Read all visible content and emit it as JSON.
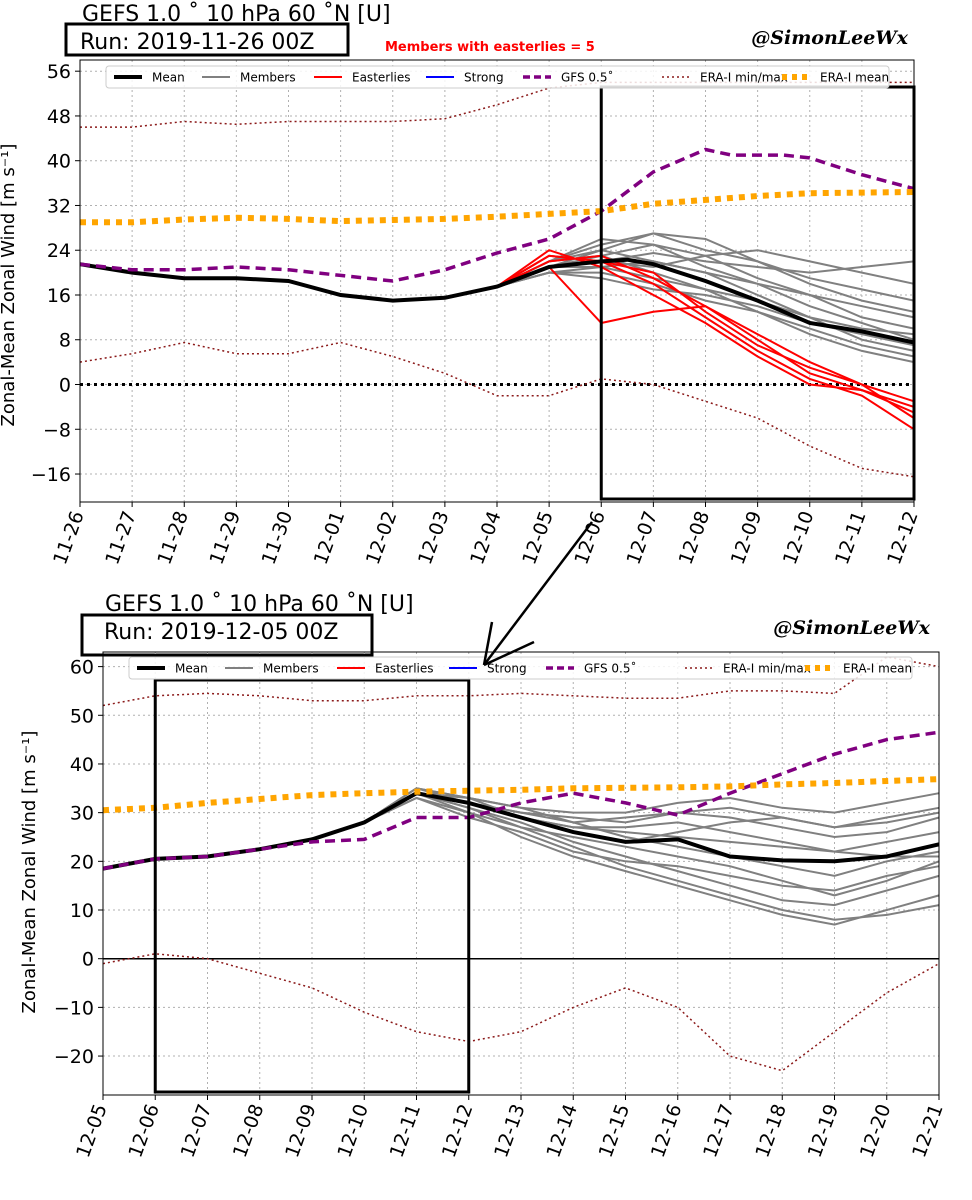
{
  "chart_data": [
    {
      "type": "line",
      "title": "GEFS 1.0 ˚ 10 hPa 60 ˚N [U]",
      "run_label": "Run: 2019-11-26 00Z",
      "credit": "@SimonLeeWx",
      "annotation": "Members with easterlies = 5",
      "ylabel": "Zonal-Mean Zonal Wind [m s⁻¹]",
      "x_tick_labels": [
        "11-26",
        "11-27",
        "11-28",
        "11-29",
        "11-30",
        "12-01",
        "12-02",
        "12-03",
        "12-04",
        "12-05",
        "12-06",
        "12-07",
        "12-08",
        "12-09",
        "12-10",
        "12-11",
        "12-12"
      ],
      "y_ticks": [
        -16,
        -8,
        0,
        8,
        16,
        24,
        32,
        40,
        48,
        56
      ],
      "ylim": [
        -21,
        58
      ],
      "xlim_days": [
        0,
        16
      ],
      "grid": true,
      "legend_placement": "top",
      "highlight_box_days": [
        10,
        16
      ],
      "legend": [
        "Mean",
        "Members",
        "Easterlies",
        "Strong",
        "GFS 0.5˚",
        "ERA-I min/max",
        "ERA-I mean"
      ],
      "series": [
        {
          "name": "Mean",
          "color": "#000000",
          "x": [
            0,
            1,
            2,
            3,
            4,
            5,
            6,
            7,
            8,
            9,
            10,
            10.5,
            11,
            12,
            13,
            14,
            15,
            16
          ],
          "y": [
            21.5,
            20,
            19,
            19,
            18.5,
            16,
            15,
            15.5,
            17.5,
            21,
            22,
            22.3,
            21.5,
            18.5,
            15,
            11,
            9.5,
            7.5
          ]
        },
        {
          "name": "GFS 0.5˚",
          "color": "#800080",
          "x": [
            0,
            1,
            2,
            3,
            4,
            5,
            6,
            7,
            8,
            9,
            10,
            11,
            12,
            12.5,
            13,
            13.5,
            14,
            15,
            16
          ],
          "y": [
            21.5,
            20.5,
            20.5,
            21,
            20.5,
            19.5,
            18.5,
            20.5,
            23.5,
            26,
            31,
            38,
            42,
            41,
            41,
            41,
            40.5,
            37.5,
            35
          ]
        },
        {
          "name": "ERA-I mean",
          "color": "#ffa500",
          "x": [
            0,
            1,
            2,
            3,
            4,
            5,
            6,
            7,
            8,
            9,
            10,
            11,
            12,
            13,
            14,
            15,
            16
          ],
          "y": [
            29,
            29,
            29.5,
            29.8,
            29.6,
            29.2,
            29.4,
            29.6,
            30,
            30.5,
            31,
            32.3,
            33,
            33.7,
            34.2,
            34.3,
            34.4
          ]
        },
        {
          "name": "ERA-I max",
          "color": "#8b1a1a",
          "x": [
            0,
            1,
            2,
            3,
            4,
            5,
            6,
            7,
            8,
            9,
            10,
            11,
            12,
            13,
            14,
            15,
            16
          ],
          "y": [
            46,
            46,
            47,
            46.5,
            47,
            47,
            47,
            47.5,
            50,
            53,
            54,
            54,
            54,
            54,
            54,
            54,
            54
          ]
        },
        {
          "name": "ERA-I min",
          "color": "#8b1a1a",
          "x": [
            0,
            1,
            2,
            3,
            4,
            5,
            6,
            7,
            8,
            9,
            10,
            11,
            12,
            13,
            14,
            15,
            16
          ],
          "y": [
            4,
            5.5,
            7.5,
            5.5,
            5.5,
            7.5,
            5,
            2,
            -2,
            -2,
            1,
            0,
            -3,
            -6,
            -11,
            -15,
            -16.5
          ]
        }
      ],
      "members": [
        [
          21.5,
          20,
          19,
          19,
          18.5,
          16,
          15,
          15.5,
          17.5,
          21,
          22,
          23.5,
          22,
          21,
          20,
          21,
          22
        ],
        [
          21.5,
          20,
          19,
          19,
          18.5,
          16,
          15,
          15.5,
          17.5,
          22,
          25,
          27,
          24,
          22,
          19,
          17,
          15
        ],
        [
          21.5,
          20,
          19,
          19,
          18.5,
          16,
          15,
          15.5,
          17.5,
          20,
          21,
          19,
          17,
          15,
          12,
          10,
          9
        ],
        [
          21.5,
          20,
          19,
          19,
          18.5,
          16,
          15,
          15.5,
          17.5,
          22,
          24,
          22,
          20,
          16,
          12,
          8,
          6
        ],
        [
          21.5,
          20,
          19,
          19,
          18.5,
          16,
          15,
          15.5,
          17.5,
          21,
          23,
          25,
          23,
          19,
          16,
          14,
          12
        ],
        [
          21.5,
          20,
          19,
          19,
          18.5,
          16,
          15,
          15.5,
          17.5,
          20,
          20,
          18,
          15,
          13,
          10,
          7,
          5
        ],
        [
          21.5,
          20,
          19,
          19,
          18.5,
          16,
          15,
          15.5,
          17.5,
          22,
          26,
          25,
          21,
          18,
          14,
          11,
          8
        ],
        [
          21.5,
          20,
          19,
          19,
          18.5,
          16,
          15,
          15.5,
          17.5,
          21,
          22,
          21,
          23,
          24,
          22,
          20,
          18
        ],
        [
          21.5,
          20,
          19,
          19,
          18.5,
          16,
          15,
          15.5,
          17.5,
          20,
          19,
          17,
          16,
          14,
          11,
          9,
          7
        ],
        [
          21.5,
          20,
          19,
          19,
          18.5,
          16,
          15,
          15.5,
          17.5,
          21,
          24,
          27,
          26,
          22,
          18,
          15,
          13
        ],
        [
          21.5,
          20,
          19,
          19,
          18.5,
          16,
          15,
          15.5,
          17.5,
          22,
          23,
          20,
          17,
          13,
          9,
          6,
          4
        ],
        [
          21.5,
          20,
          19,
          19,
          18.5,
          16,
          15,
          15.5,
          17.5,
          21,
          21,
          22,
          20,
          18,
          16,
          12,
          10
        ]
      ],
      "easterly_members": [
        [
          21.5,
          20,
          19,
          19,
          18.5,
          16,
          15,
          15.5,
          17.5,
          21,
          11,
          13,
          14,
          8,
          2,
          -1,
          -5
        ],
        [
          21.5,
          20,
          19,
          19,
          18.5,
          16,
          15,
          15.5,
          17.5,
          23,
          22,
          18,
          12,
          6,
          1,
          -2,
          -8
        ],
        [
          21.5,
          20,
          19,
          19,
          18.5,
          16,
          15,
          15.5,
          17.5,
          24,
          21,
          16,
          11,
          5,
          0,
          -1,
          -4
        ],
        [
          21.5,
          20,
          19,
          19,
          18.5,
          16,
          15,
          15.5,
          17.5,
          22,
          23,
          19,
          14,
          9,
          4,
          0,
          -3
        ],
        [
          21.5,
          20,
          19,
          19,
          18.5,
          16,
          15,
          15.5,
          17.5,
          23,
          22,
          20,
          13,
          7,
          3,
          0,
          -6
        ]
      ]
    },
    {
      "type": "line",
      "title": "GEFS 1.0 ˚ 10 hPa 60 ˚N [U]",
      "run_label": "Run: 2019-12-05 00Z",
      "credit": "@SimonLeeWx",
      "ylabel": "Zonal-Mean Zonal Wind [m s⁻¹]",
      "x_tick_labels": [
        "12-05",
        "12-06",
        "12-07",
        "12-08",
        "12-09",
        "12-10",
        "12-11",
        "12-12",
        "12-13",
        "12-14",
        "12-15",
        "12-16",
        "12-17",
        "12-18",
        "12-19",
        "12-20",
        "12-21"
      ],
      "y_ticks": [
        -20,
        -10,
        0,
        10,
        20,
        30,
        40,
        50,
        60
      ],
      "ylim": [
        -28,
        63
      ],
      "xlim_days": [
        0,
        16
      ],
      "grid": true,
      "legend_placement": "top",
      "highlight_box_days": [
        1,
        7
      ],
      "legend": [
        "Mean",
        "Members",
        "Easterlies",
        "Strong",
        "GFS 0.5˚",
        "ERA-I min/max",
        "ERA-I mean"
      ],
      "series": [
        {
          "name": "Mean",
          "color": "#000000",
          "x": [
            0,
            1,
            2,
            3,
            4,
            5,
            6,
            7,
            8,
            9,
            10,
            11,
            12,
            13,
            14,
            15,
            16
          ],
          "y": [
            18.5,
            20.5,
            21,
            22.5,
            24.5,
            28,
            34,
            32,
            29,
            26,
            24,
            24.5,
            21,
            20.2,
            20,
            21,
            23.5
          ]
        },
        {
          "name": "GFS 0.5˚",
          "color": "#800080",
          "x": [
            0,
            1,
            2,
            3,
            4,
            5,
            6,
            7,
            8,
            9,
            10,
            11,
            12,
            13,
            14,
            15,
            16
          ],
          "y": [
            18.5,
            20.5,
            21,
            22.5,
            24,
            24.5,
            29,
            29,
            32,
            34,
            32,
            29.5,
            34,
            38,
            42,
            45,
            46.5
          ]
        },
        {
          "name": "ERA-I mean",
          "color": "#ffa500",
          "x": [
            0,
            1,
            2,
            3,
            4,
            5,
            6,
            7,
            8,
            9,
            10,
            11,
            12,
            13,
            14,
            15,
            16
          ],
          "y": [
            30.5,
            31,
            32,
            32.8,
            33.6,
            34,
            34.3,
            34.5,
            34.7,
            35,
            35.1,
            35.2,
            35.4,
            35.8,
            36.1,
            36.5,
            36.9
          ]
        },
        {
          "name": "ERA-I max",
          "color": "#8b1a1a",
          "x": [
            0,
            1,
            2,
            3,
            4,
            5,
            6,
            7,
            8,
            9,
            10,
            11,
            12,
            13,
            14,
            15,
            16
          ],
          "y": [
            52,
            54,
            54.5,
            54,
            53,
            53,
            54,
            54,
            54.5,
            54,
            53.5,
            53.5,
            55,
            55,
            54.5,
            62,
            60
          ]
        },
        {
          "name": "ERA-I min",
          "color": "#8b1a1a",
          "x": [
            0,
            1,
            2,
            3,
            4,
            5,
            6,
            7,
            8,
            9,
            10,
            11,
            12,
            13,
            14,
            15,
            16
          ],
          "y": [
            -1,
            1,
            0,
            -3,
            -6,
            -11,
            -15,
            -17,
            -15,
            -10,
            -6,
            -10,
            -20,
            -23,
            -15,
            -7,
            -1
          ]
        }
      ],
      "members": [
        [
          18.5,
          20.5,
          21,
          22.5,
          24.5,
          28,
          34,
          32,
          29,
          27,
          26,
          25,
          24,
          23,
          22,
          21,
          21
        ],
        [
          18.5,
          20.5,
          21,
          22.5,
          24.5,
          28,
          34,
          33,
          31,
          30,
          30,
          32,
          33,
          31,
          30,
          32,
          34
        ],
        [
          18.5,
          20.5,
          21,
          22.5,
          24.5,
          28,
          34,
          31,
          27,
          23,
          19,
          16,
          13,
          10,
          8,
          9,
          11
        ],
        [
          18.5,
          20.5,
          21,
          22.5,
          24.5,
          28,
          35,
          33,
          29,
          26,
          24,
          26,
          28,
          29,
          27,
          28,
          30
        ],
        [
          18.5,
          20.5,
          21,
          22.5,
          24.5,
          28,
          33,
          30,
          25,
          21,
          18,
          15,
          12,
          9,
          7,
          10,
          13
        ],
        [
          18.5,
          20.5,
          21,
          22.5,
          24.5,
          28,
          34,
          32,
          30,
          29,
          28,
          30,
          29,
          27,
          25,
          26,
          29
        ],
        [
          18.5,
          20.5,
          21,
          22.5,
          24.5,
          28,
          34,
          31,
          28,
          24,
          21,
          18,
          15,
          12,
          11,
          14,
          17
        ],
        [
          18.5,
          20.5,
          21,
          22.5,
          24.5,
          28,
          35,
          33,
          31,
          28,
          25,
          23,
          21,
          19,
          17,
          20,
          22
        ],
        [
          18.5,
          20.5,
          21,
          22.5,
          24.5,
          28,
          33,
          29,
          26,
          22,
          20,
          19,
          17,
          15,
          14,
          17,
          19
        ],
        [
          18.5,
          20.5,
          21,
          22.5,
          24.5,
          28,
          34,
          32,
          29,
          27,
          27,
          28,
          26,
          24,
          22,
          24,
          26
        ],
        [
          18.5,
          20.5,
          21,
          22.5,
          24.5,
          28,
          34,
          30,
          27,
          25,
          23,
          21,
          19,
          16,
          13,
          16,
          20
        ],
        [
          18.5,
          20.5,
          21,
          22.5,
          24.5,
          28,
          35,
          32,
          30,
          28,
          29,
          30,
          31,
          29,
          27,
          29,
          31
        ]
      ]
    }
  ]
}
